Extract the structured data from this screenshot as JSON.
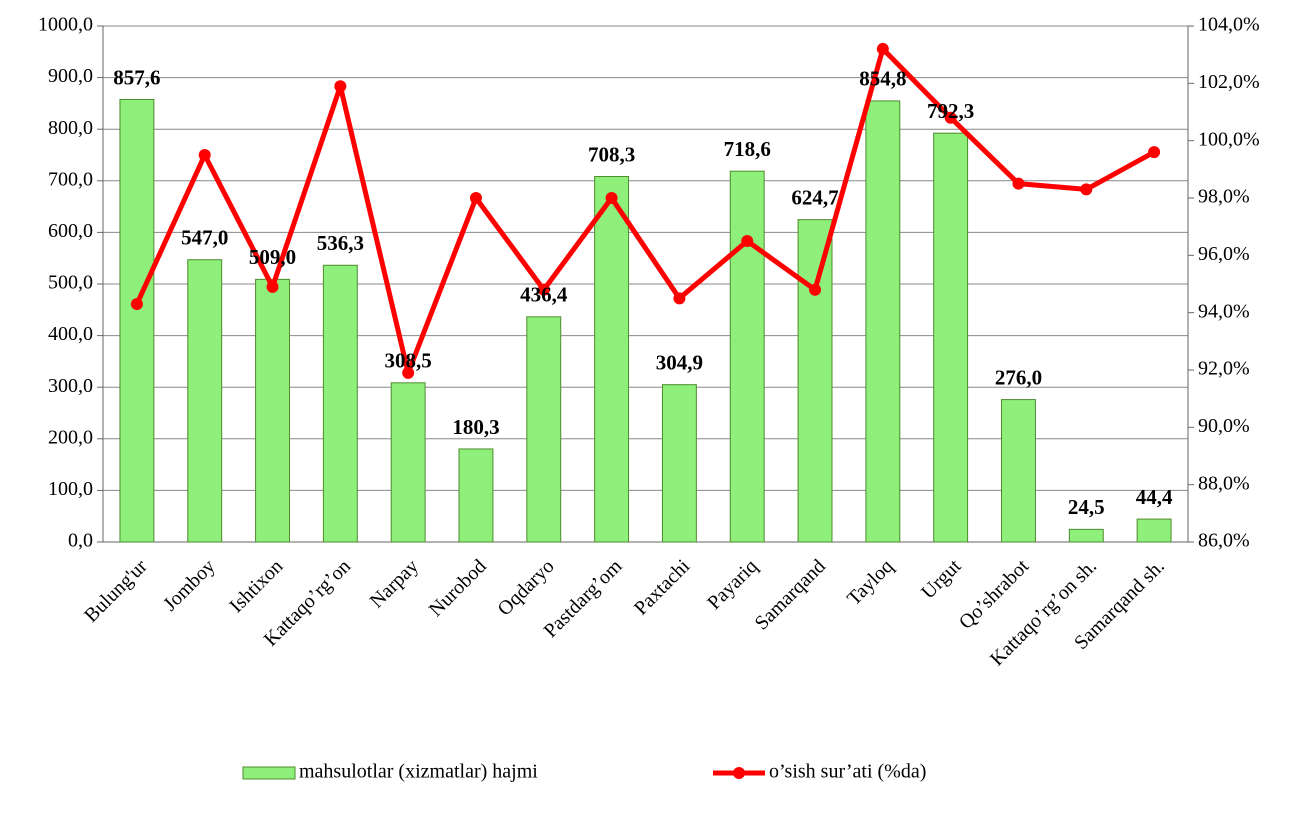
{
  "chart_data": {
    "type": "bar_line",
    "categories": [
      "Bulung'ur",
      "Jomboy",
      "Ishtixon",
      "Kattaqo’rg’on",
      "Narpay",
      "Nurobod",
      "Oqdaryo",
      "Pastdarg’om",
      "Paxtachi",
      "Payariq",
      "Samarqand",
      "Tayloq",
      "Urgut",
      "Qo’shrabot",
      "Kattaqo’rg’on sh.",
      "Samarqand sh."
    ],
    "series": [
      {
        "name": "mahsulotlar (xizmatlar) hajmi",
        "type": "bar",
        "color": "#8ef07a",
        "values": [
          857.6,
          547.0,
          509.0,
          536.3,
          308.5,
          180.3,
          436.4,
          708.3,
          304.9,
          718.6,
          624.7,
          854.8,
          792.3,
          276.0,
          24.5,
          44.4
        ],
        "value_labels": [
          "857,6",
          "547,0",
          "509,0",
          "536,3",
          "308,5",
          "180,3",
          "436,4",
          "708,3",
          "304,9",
          "718,6",
          "624,7",
          "854,8",
          "792,3",
          "276,0",
          "24,5",
          "44,4"
        ]
      },
      {
        "name": "o’sish sur’ati (%da)",
        "type": "line",
        "color": "#ff0000",
        "axis": "y2",
        "values": [
          94.3,
          99.5,
          94.9,
          101.9,
          91.9,
          98.0,
          94.8,
          98.0,
          94.5,
          96.5,
          94.8,
          103.2,
          100.8,
          98.5,
          98.3,
          99.6
        ]
      }
    ],
    "ylim": [
      0,
      1000
    ],
    "yticks": [
      {
        "value": 0,
        "label": "0,0"
      },
      {
        "value": 100,
        "label": "100,0"
      },
      {
        "value": 200,
        "label": "200,0"
      },
      {
        "value": 300,
        "label": "300,0"
      },
      {
        "value": 400,
        "label": "400,0"
      },
      {
        "value": 500,
        "label": "500,0"
      },
      {
        "value": 600,
        "label": "600,0"
      },
      {
        "value": 700,
        "label": "700,0"
      },
      {
        "value": 800,
        "label": "800,0"
      },
      {
        "value": 900,
        "label": "900,0"
      },
      {
        "value": 1000,
        "label": "1000,0"
      }
    ],
    "y2lim": [
      86,
      104
    ],
    "y2ticks": [
      {
        "value": 86,
        "label": "86,0%"
      },
      {
        "value": 88,
        "label": "88,0%"
      },
      {
        "value": 90,
        "label": "90,0%"
      },
      {
        "value": 92,
        "label": "92,0%"
      },
      {
        "value": 94,
        "label": "94,0%"
      },
      {
        "value": 96,
        "label": "96,0%"
      },
      {
        "value": 98,
        "label": "98,0%"
      },
      {
        "value": 100,
        "label": "100,0%"
      },
      {
        "value": 102,
        "label": "102,0%"
      },
      {
        "value": 104,
        "label": "104,0%"
      }
    ],
    "grid": true
  }
}
